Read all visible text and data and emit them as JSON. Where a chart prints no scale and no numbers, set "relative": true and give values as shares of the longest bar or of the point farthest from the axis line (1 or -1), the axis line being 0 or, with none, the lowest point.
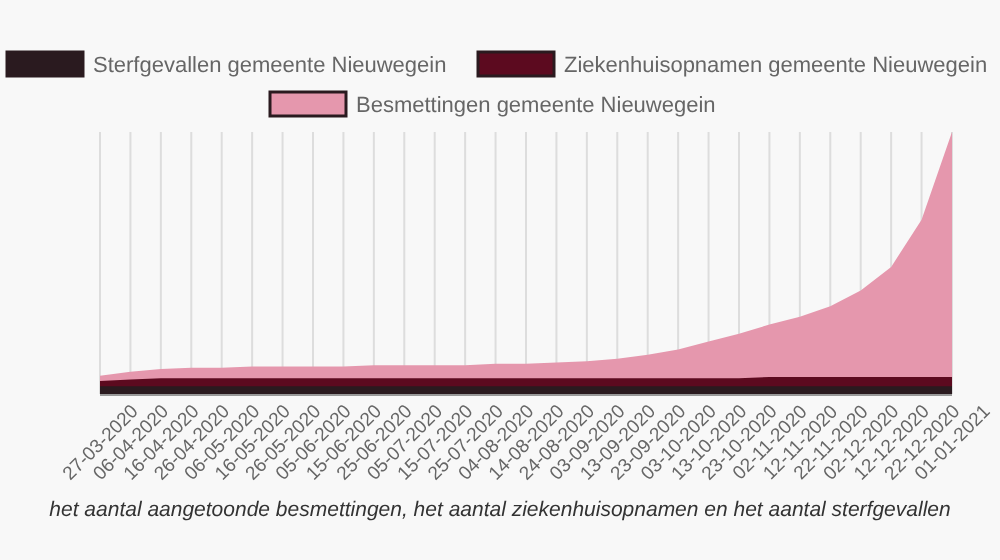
{
  "chart_data": {
    "type": "area",
    "relative": true,
    "grid": "x",
    "legend": "top",
    "categories": [
      "27-03-2020",
      "06-04-2020",
      "16-04-2020",
      "26-04-2020",
      "06-05-2020",
      "16-05-2020",
      "26-05-2020",
      "05-06-2020",
      "15-06-2020",
      "25-06-2020",
      "05-07-2020",
      "15-07-2020",
      "25-07-2020",
      "04-08-2020",
      "14-08-2020",
      "24-08-2020",
      "03-09-2020",
      "13-09-2020",
      "23-09-2020",
      "03-10-2020",
      "13-10-2020",
      "23-10-2020",
      "02-11-2020",
      "12-11-2020",
      "22-11-2020",
      "02-12-2020",
      "12-12-2020",
      "22-12-2020",
      "01-01-2021"
    ],
    "series": [
      {
        "name": "Sterfgevallen gemeente Nieuwegein",
        "color": "#2a1a1f",
        "values": [
          0.03,
          0.03,
          0.03,
          0.03,
          0.03,
          0.03,
          0.03,
          0.03,
          0.03,
          0.03,
          0.03,
          0.03,
          0.03,
          0.03,
          0.03,
          0.03,
          0.03,
          0.03,
          0.03,
          0.03,
          0.03,
          0.03,
          0.03,
          0.03,
          0.03,
          0.03,
          0.03,
          0.03,
          0.03
        ]
      },
      {
        "name": "Ziekenhuisopnamen gemeente Nieuwegein",
        "color": "#5c0a1f",
        "values": [
          0.05,
          0.055,
          0.06,
          0.06,
          0.06,
          0.06,
          0.06,
          0.06,
          0.06,
          0.06,
          0.06,
          0.06,
          0.06,
          0.06,
          0.06,
          0.06,
          0.06,
          0.06,
          0.06,
          0.06,
          0.06,
          0.06,
          0.065,
          0.065,
          0.065,
          0.065,
          0.065,
          0.065,
          0.065
        ]
      },
      {
        "name": "Besmettingen gemeente Nieuwegein",
        "color": "#e597ad",
        "values": [
          0.07,
          0.085,
          0.095,
          0.1,
          0.1,
          0.105,
          0.105,
          0.105,
          0.105,
          0.11,
          0.11,
          0.11,
          0.11,
          0.115,
          0.115,
          0.12,
          0.125,
          0.135,
          0.15,
          0.17,
          0.2,
          0.23,
          0.265,
          0.295,
          0.335,
          0.395,
          0.485,
          0.665,
          1
        ]
      }
    ],
    "annotations": [
      "het aantal aangetoonde besmettingen, het aantal ziekenhuisopnamen en het aantal sterfgevallen"
    ]
  }
}
